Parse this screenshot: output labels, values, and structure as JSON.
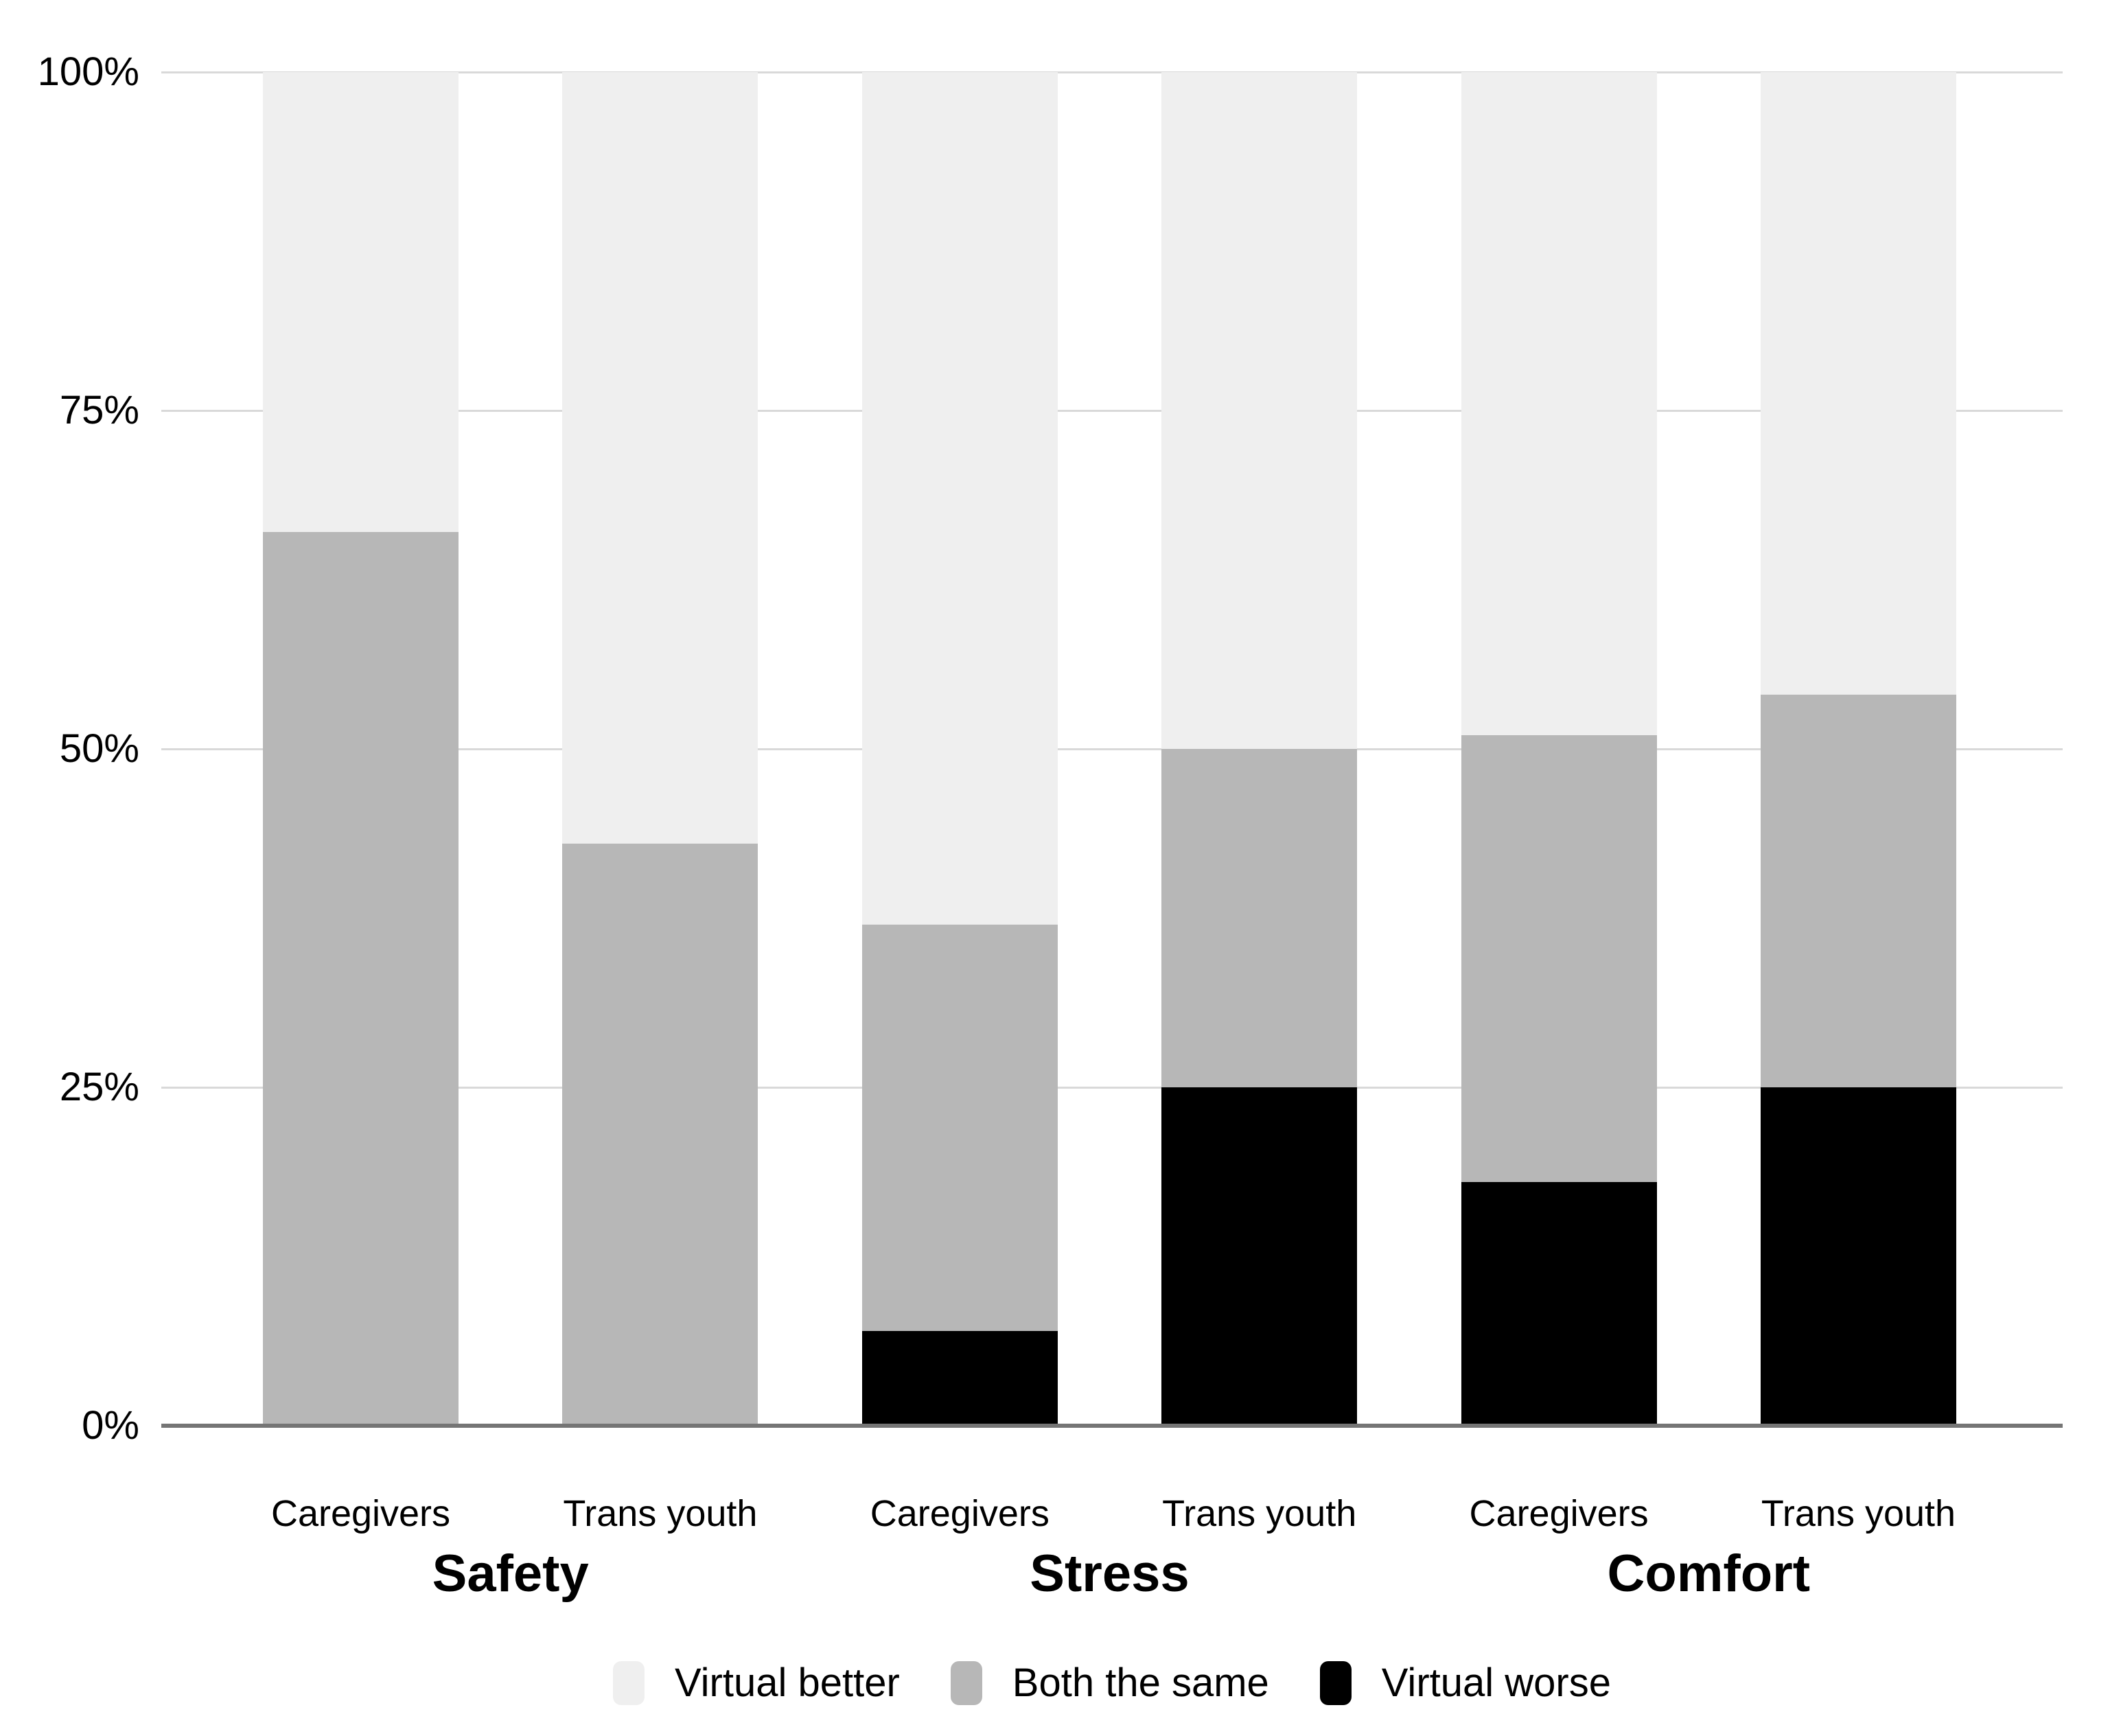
{
  "page": {
    "background": "#ffffff"
  },
  "chart_data": {
    "type": "bar",
    "stacked": true,
    "units": "percent",
    "title": "",
    "xlabel": "",
    "ylabel": "",
    "grid": {
      "show": true,
      "gridline_color": "#d9d9d9",
      "axis_line_color": "#757575"
    },
    "text_color": "#000000",
    "groups": [
      {
        "label": "Safety"
      },
      {
        "label": "Stress"
      },
      {
        "label": "Comfort"
      }
    ],
    "categories": [
      {
        "group": "Safety",
        "label": "Caregivers"
      },
      {
        "group": "Safety",
        "label": "Trans youth"
      },
      {
        "group": "Stress",
        "label": "Caregivers"
      },
      {
        "group": "Stress",
        "label": "Trans youth"
      },
      {
        "group": "Comfort",
        "label": "Caregivers"
      },
      {
        "group": "Comfort",
        "label": "Trans youth"
      }
    ],
    "series": [
      {
        "name": "Virtual worse",
        "color": "#000000",
        "values": [
          0,
          0,
          7,
          25,
          18,
          25
        ]
      },
      {
        "name": "Both the same",
        "color": "#b7b7b7",
        "values": [
          66,
          43,
          30,
          25,
          33,
          29
        ]
      },
      {
        "name": "Virtual better",
        "color": "#efefef",
        "values": [
          34,
          57,
          63,
          50,
          49,
          46
        ]
      }
    ],
    "stack_order_bottom_to_top": [
      "Virtual worse",
      "Both the same",
      "Virtual better"
    ],
    "y_axis": {
      "range": [
        0,
        100
      ],
      "ticks": [
        {
          "value": 0,
          "label": "0%"
        },
        {
          "value": 25,
          "label": "25%"
        },
        {
          "value": 50,
          "label": "50%"
        },
        {
          "value": 75,
          "label": "75%"
        },
        {
          "value": 100,
          "label": "100%"
        }
      ]
    },
    "legend": {
      "position": "bottom",
      "items": [
        "Virtual better",
        "Both the same",
        "Virtual worse"
      ]
    }
  }
}
